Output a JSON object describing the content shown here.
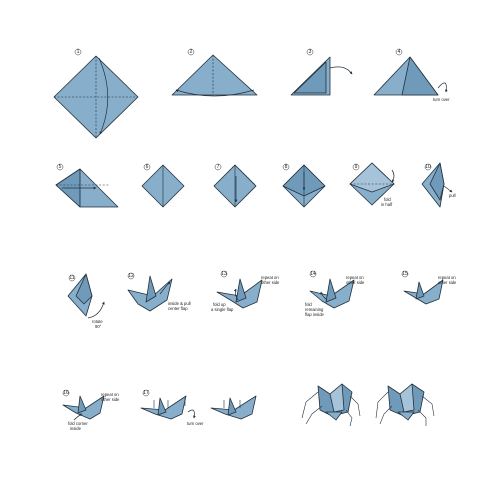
{
  "diagram": {
    "steps": [
      {
        "number": "1"
      },
      {
        "number": "2"
      },
      {
        "number": "3"
      },
      {
        "number": "4",
        "note": "turn over"
      },
      {
        "number": "5"
      },
      {
        "number": "6"
      },
      {
        "number": "7"
      },
      {
        "number": "8"
      },
      {
        "number": "9",
        "note_lines": [
          "fold",
          "in half"
        ]
      },
      {
        "number": "10",
        "note": "pull"
      },
      {
        "number": "11",
        "note_lines": [
          "rotate",
          "90°"
        ]
      },
      {
        "number": "12",
        "note_lines": [
          "inside & pull",
          "center flap"
        ]
      },
      {
        "number": "13",
        "note_lines": [
          "fold up",
          "a single flap"
        ],
        "note2_lines": [
          "repeat on",
          "other side"
        ]
      },
      {
        "number": "14",
        "note_lines": [
          "fold",
          "remaining",
          "flap inside"
        ],
        "note2_lines": [
          "repeat on",
          "other side"
        ]
      },
      {
        "number": "15",
        "note_lines": [
          "repeat on",
          "other side"
        ]
      },
      {
        "number": "16",
        "note_lines": [
          "fold corner",
          "inside"
        ],
        "note2_lines": [
          "repeat on",
          "other side"
        ]
      },
      {
        "number": "17",
        "note": "turn over"
      },
      {
        "number": "18"
      }
    ]
  },
  "colors": {
    "paper": "#87aecb",
    "paper_dark": "#6f9ab9",
    "paper_light": "#a6c3d9",
    "outline": "#23313d"
  },
  "arrow_marker": "arrow-icon"
}
